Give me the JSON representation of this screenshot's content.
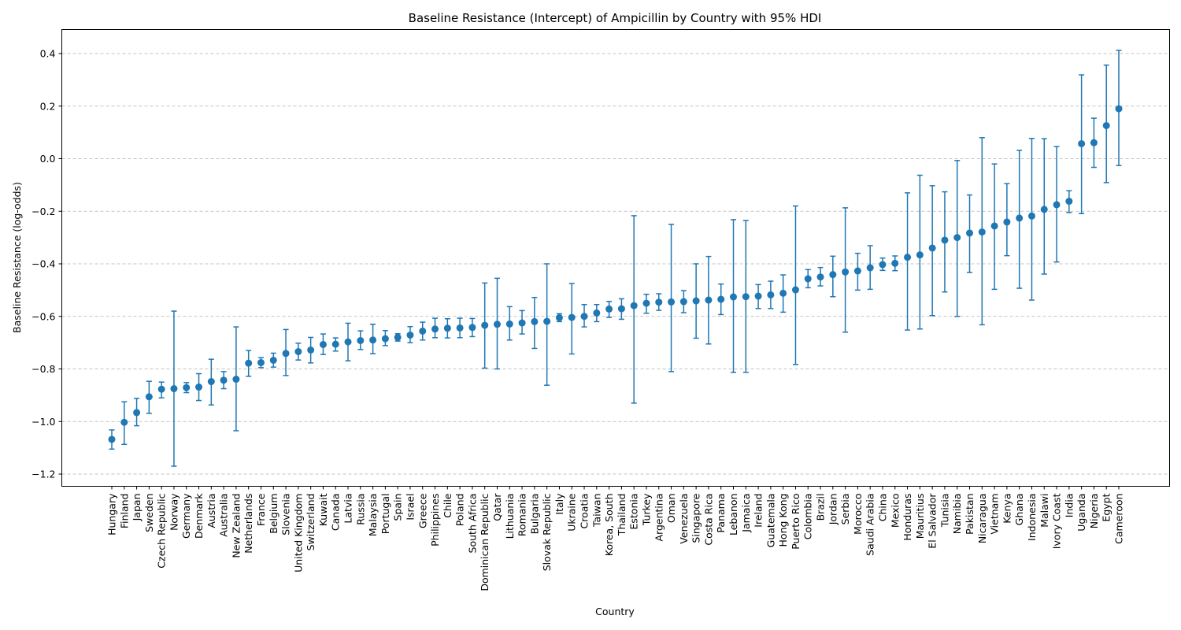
{
  "chart_data": {
    "type": "scatter",
    "subtype": "point-with-errorbars",
    "title": "Baseline Resistance (Intercept) of Ampicillin by Country with 95% HDI",
    "xlabel": "Country",
    "ylabel": "Baseline Resistance (log-odds)",
    "ylim": [
      -1.25,
      0.5
    ],
    "yticks": [
      -1.2,
      -1.0,
      -0.8,
      -0.6,
      -0.4,
      -0.2,
      0.0,
      0.2,
      0.4
    ],
    "ytick_labels": [
      "−1.2",
      "−1.0",
      "−0.8",
      "−0.6",
      "−0.4",
      "−0.2",
      "0.0",
      "0.2",
      "0.4"
    ],
    "grid": "horizontal-dashed",
    "color": "#1f77b4",
    "series": [
      {
        "name": "Hungary",
        "mean": -1.068,
        "lower": -1.105,
        "upper": -1.032
      },
      {
        "name": "Finland",
        "mean": -1.003,
        "lower": -1.087,
        "upper": -0.925
      },
      {
        "name": "Japan",
        "mean": -0.966,
        "lower": -1.016,
        "upper": -0.912
      },
      {
        "name": "Sweden",
        "mean": -0.906,
        "lower": -0.969,
        "upper": -0.847
      },
      {
        "name": "Czech Republic",
        "mean": -0.877,
        "lower": -0.91,
        "upper": -0.85
      },
      {
        "name": "Norway",
        "mean": -0.875,
        "lower": -1.17,
        "upper": -0.58
      },
      {
        "name": "Germany",
        "mean": -0.871,
        "lower": -0.89,
        "upper": -0.852
      },
      {
        "name": "Denmark",
        "mean": -0.869,
        "lower": -0.92,
        "upper": -0.818
      },
      {
        "name": "Austria",
        "mean": -0.848,
        "lower": -0.937,
        "upper": -0.763
      },
      {
        "name": "Australia",
        "mean": -0.843,
        "lower": -0.875,
        "upper": -0.81
      },
      {
        "name": "New Zealand",
        "mean": -0.839,
        "lower": -1.035,
        "upper": -0.64
      },
      {
        "name": "Netherlands",
        "mean": -0.778,
        "lower": -0.828,
        "upper": -0.73
      },
      {
        "name": "France",
        "mean": -0.776,
        "lower": -0.795,
        "upper": -0.757
      },
      {
        "name": "Belgium",
        "mean": -0.767,
        "lower": -0.793,
        "upper": -0.74
      },
      {
        "name": "Slovenia",
        "mean": -0.741,
        "lower": -0.825,
        "upper": -0.65
      },
      {
        "name": "United Kingdom",
        "mean": -0.734,
        "lower": -0.766,
        "upper": -0.702
      },
      {
        "name": "Switzerland",
        "mean": -0.728,
        "lower": -0.777,
        "upper": -0.68
      },
      {
        "name": "Kuwait",
        "mean": -0.707,
        "lower": -0.745,
        "upper": -0.667
      },
      {
        "name": "Canada",
        "mean": -0.706,
        "lower": -0.732,
        "upper": -0.682
      },
      {
        "name": "Latvia",
        "mean": -0.697,
        "lower": -0.769,
        "upper": -0.626
      },
      {
        "name": "Russia",
        "mean": -0.692,
        "lower": -0.726,
        "upper": -0.655
      },
      {
        "name": "Malaysia",
        "mean": -0.69,
        "lower": -0.742,
        "upper": -0.63
      },
      {
        "name": "Portugal",
        "mean": -0.685,
        "lower": -0.711,
        "upper": -0.654
      },
      {
        "name": "Spain",
        "mean": -0.68,
        "lower": -0.694,
        "upper": -0.666
      },
      {
        "name": "Israel",
        "mean": -0.671,
        "lower": -0.7,
        "upper": -0.639
      },
      {
        "name": "Greece",
        "mean": -0.656,
        "lower": -0.69,
        "upper": -0.622
      },
      {
        "name": "Philippines",
        "mean": -0.648,
        "lower": -0.681,
        "upper": -0.607
      },
      {
        "name": "Chile",
        "mean": -0.645,
        "lower": -0.682,
        "upper": -0.609
      },
      {
        "name": "Poland",
        "mean": -0.644,
        "lower": -0.681,
        "upper": -0.607
      },
      {
        "name": "South Africa",
        "mean": -0.642,
        "lower": -0.677,
        "upper": -0.608
      },
      {
        "name": "Dominican Republic",
        "mean": -0.634,
        "lower": -0.797,
        "upper": -0.473
      },
      {
        "name": "Qatar",
        "mean": -0.63,
        "lower": -0.8,
        "upper": -0.455
      },
      {
        "name": "Lithuania",
        "mean": -0.629,
        "lower": -0.69,
        "upper": -0.563
      },
      {
        "name": "Romania",
        "mean": -0.625,
        "lower": -0.667,
        "upper": -0.578
      },
      {
        "name": "Bulgaria",
        "mean": -0.62,
        "lower": -0.722,
        "upper": -0.528
      },
      {
        "name": "Slovak Republic",
        "mean": -0.619,
        "lower": -0.862,
        "upper": -0.4
      },
      {
        "name": "Italy",
        "mean": -0.605,
        "lower": -0.62,
        "upper": -0.59
      },
      {
        "name": "Ukraine",
        "mean": -0.604,
        "lower": -0.743,
        "upper": -0.475
      },
      {
        "name": "Croatia",
        "mean": -0.6,
        "lower": -0.64,
        "upper": -0.555
      },
      {
        "name": "Taiwan",
        "mean": -0.587,
        "lower": -0.62,
        "upper": -0.555
      },
      {
        "name": "Korea, South",
        "mean": -0.572,
        "lower": -0.604,
        "upper": -0.543
      },
      {
        "name": "Thailand",
        "mean": -0.571,
        "lower": -0.611,
        "upper": -0.533
      },
      {
        "name": "Estonia",
        "mean": -0.559,
        "lower": -0.93,
        "upper": -0.217
      },
      {
        "name": "Turkey",
        "mean": -0.55,
        "lower": -0.588,
        "upper": -0.516
      },
      {
        "name": "Argentina",
        "mean": -0.546,
        "lower": -0.577,
        "upper": -0.514
      },
      {
        "name": "Oman",
        "mean": -0.545,
        "lower": -0.81,
        "upper": -0.25
      },
      {
        "name": "Venezuela",
        "mean": -0.544,
        "lower": -0.586,
        "upper": -0.502
      },
      {
        "name": "Singapore",
        "mean": -0.541,
        "lower": -0.683,
        "upper": -0.4
      },
      {
        "name": "Costa Rica",
        "mean": -0.538,
        "lower": -0.705,
        "upper": -0.372
      },
      {
        "name": "Panama",
        "mean": -0.535,
        "lower": -0.593,
        "upper": -0.477
      },
      {
        "name": "Lebanon",
        "mean": -0.526,
        "lower": -0.813,
        "upper": -0.232
      },
      {
        "name": "Jamaica",
        "mean": -0.525,
        "lower": -0.813,
        "upper": -0.235
      },
      {
        "name": "Ireland",
        "mean": -0.523,
        "lower": -0.57,
        "upper": -0.479
      },
      {
        "name": "Guatemala",
        "mean": -0.518,
        "lower": -0.57,
        "upper": -0.466
      },
      {
        "name": "Hong Kong",
        "mean": -0.512,
        "lower": -0.584,
        "upper": -0.442
      },
      {
        "name": "Puerto Rico",
        "mean": -0.499,
        "lower": -0.783,
        "upper": -0.18
      },
      {
        "name": "Colombia",
        "mean": -0.457,
        "lower": -0.491,
        "upper": -0.422
      },
      {
        "name": "Brazil",
        "mean": -0.45,
        "lower": -0.484,
        "upper": -0.414
      },
      {
        "name": "Jordan",
        "mean": -0.441,
        "lower": -0.525,
        "upper": -0.371
      },
      {
        "name": "Serbia",
        "mean": -0.431,
        "lower": -0.66,
        "upper": -0.187
      },
      {
        "name": "Morocco",
        "mean": -0.427,
        "lower": -0.5,
        "upper": -0.36
      },
      {
        "name": "Saudi Arabia",
        "mean": -0.415,
        "lower": -0.497,
        "upper": -0.331
      },
      {
        "name": "China",
        "mean": -0.403,
        "lower": -0.425,
        "upper": -0.378
      },
      {
        "name": "Mexico",
        "mean": -0.398,
        "lower": -0.426,
        "upper": -0.37
      },
      {
        "name": "Honduras",
        "mean": -0.375,
        "lower": -0.652,
        "upper": -0.13
      },
      {
        "name": "Mauritius",
        "mean": -0.366,
        "lower": -0.648,
        "upper": -0.063
      },
      {
        "name": "El Salvador",
        "mean": -0.34,
        "lower": -0.597,
        "upper": -0.103
      },
      {
        "name": "Tunisia",
        "mean": -0.31,
        "lower": -0.507,
        "upper": -0.126
      },
      {
        "name": "Namibia",
        "mean": -0.3,
        "lower": -0.6,
        "upper": -0.007
      },
      {
        "name": "Pakistan",
        "mean": -0.283,
        "lower": -0.433,
        "upper": -0.138
      },
      {
        "name": "Nicaragua",
        "mean": -0.279,
        "lower": -0.632,
        "upper": 0.08
      },
      {
        "name": "Vietnam",
        "mean": -0.256,
        "lower": -0.497,
        "upper": -0.02
      },
      {
        "name": "Kenya",
        "mean": -0.241,
        "lower": -0.369,
        "upper": -0.095
      },
      {
        "name": "Ghana",
        "mean": -0.226,
        "lower": -0.493,
        "upper": 0.032
      },
      {
        "name": "Indonesia",
        "mean": -0.218,
        "lower": -0.538,
        "upper": 0.077
      },
      {
        "name": "Malawi",
        "mean": -0.193,
        "lower": -0.439,
        "upper": 0.076
      },
      {
        "name": "Ivory Coast",
        "mean": -0.175,
        "lower": -0.393,
        "upper": 0.046
      },
      {
        "name": "India",
        "mean": -0.162,
        "lower": -0.205,
        "upper": -0.122
      },
      {
        "name": "Uganda",
        "mean": 0.057,
        "lower": -0.209,
        "upper": 0.319
      },
      {
        "name": "Nigeria",
        "mean": 0.061,
        "lower": -0.033,
        "upper": 0.154
      },
      {
        "name": "Egypt",
        "mean": 0.126,
        "lower": -0.091,
        "upper": 0.356
      },
      {
        "name": "Cameroon",
        "mean": 0.19,
        "lower": -0.026,
        "upper": 0.412
      }
    ]
  }
}
